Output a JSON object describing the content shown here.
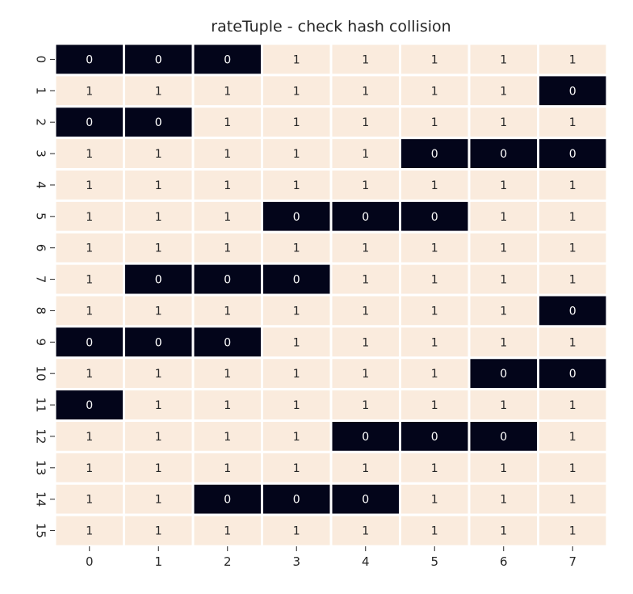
{
  "chart_data": {
    "type": "heatmap",
    "title": "rateTuple - check hash collision",
    "xlabel": "",
    "ylabel": "",
    "x_ticks": [
      "0",
      "1",
      "2",
      "3",
      "4",
      "5",
      "6",
      "7"
    ],
    "y_ticks": [
      "0",
      "1",
      "2",
      "3",
      "4",
      "5",
      "6",
      "7",
      "8",
      "9",
      "10",
      "11",
      "12",
      "13",
      "14",
      "15"
    ],
    "values": [
      [
        0,
        0,
        0,
        1,
        1,
        1,
        1,
        1
      ],
      [
        1,
        1,
        1,
        1,
        1,
        1,
        1,
        0
      ],
      [
        0,
        0,
        1,
        1,
        1,
        1,
        1,
        1
      ],
      [
        1,
        1,
        1,
        1,
        1,
        0,
        0,
        0
      ],
      [
        1,
        1,
        1,
        1,
        1,
        1,
        1,
        1
      ],
      [
        1,
        1,
        1,
        0,
        0,
        0,
        1,
        1
      ],
      [
        1,
        1,
        1,
        1,
        1,
        1,
        1,
        1
      ],
      [
        1,
        0,
        0,
        0,
        1,
        1,
        1,
        1
      ],
      [
        1,
        1,
        1,
        1,
        1,
        1,
        1,
        0
      ],
      [
        0,
        0,
        0,
        1,
        1,
        1,
        1,
        1
      ],
      [
        1,
        1,
        1,
        1,
        1,
        1,
        0,
        0
      ],
      [
        0,
        1,
        1,
        1,
        1,
        1,
        1,
        1
      ],
      [
        1,
        1,
        1,
        1,
        0,
        0,
        0,
        1
      ],
      [
        1,
        1,
        1,
        1,
        1,
        1,
        1,
        1
      ],
      [
        1,
        1,
        0,
        0,
        0,
        1,
        1,
        1
      ],
      [
        1,
        1,
        1,
        1,
        1,
        1,
        1,
        1
      ]
    ],
    "colormap": {
      "0": "#03051a",
      "1": "#faebdd"
    },
    "annotation_colors": {
      "0": "#ffffff",
      "1": "#262626"
    },
    "annotations": true,
    "colorbar": false,
    "grid_line_color": "#ffffff"
  }
}
